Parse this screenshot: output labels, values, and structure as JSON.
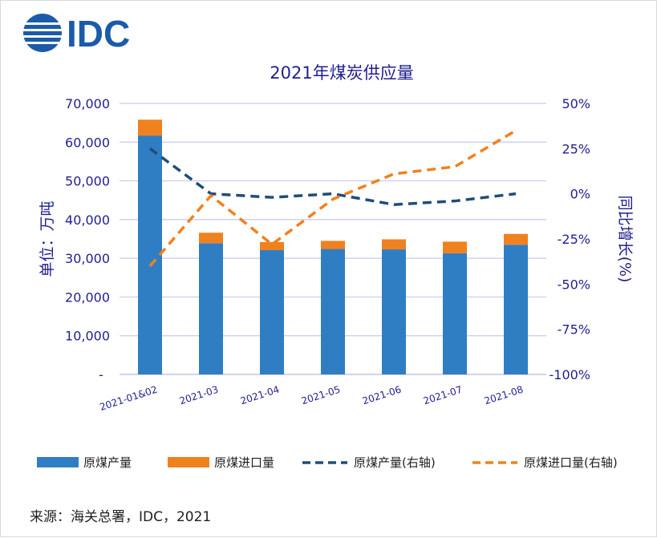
{
  "logo": {
    "text": "IDC"
  },
  "chart_data": {
    "type": "bar",
    "title": "2021年煤炭供应量",
    "categories": [
      "2021-01&02",
      "2021-03",
      "2021-04",
      "2021-05",
      "2021-06",
      "2021-07",
      "2021-08"
    ],
    "series": [
      {
        "name": "原煤产量",
        "kind": "bar",
        "axis": "left",
        "stack": "s1",
        "color": "#2f7ec4",
        "values": [
          61700,
          33900,
          32100,
          32400,
          32300,
          31300,
          33500
        ]
      },
      {
        "name": "原煤进口量",
        "kind": "bar",
        "axis": "left",
        "stack": "s1",
        "color": "#f0811f",
        "values": [
          4100,
          2700,
          2100,
          2100,
          2600,
          3000,
          2800
        ]
      },
      {
        "name": "原煤产量(右轴)",
        "kind": "line",
        "style": "dashed",
        "axis": "right",
        "color": "#1e4d7a",
        "values": [
          25,
          0,
          -2,
          0,
          -6,
          -4,
          0
        ]
      },
      {
        "name": "原煤进口量(右轴)",
        "kind": "line",
        "style": "dashed",
        "axis": "right",
        "color": "#f0811f",
        "values": [
          -40,
          -1,
          -28,
          -3,
          11,
          15,
          35
        ]
      }
    ],
    "ylabel": "单位：万吨",
    "y2label": "同比增长(%)",
    "ylim": [
      0,
      70000
    ],
    "y2lim": [
      -100,
      50
    ],
    "yticks": [
      "-",
      "10,000",
      "20,000",
      "30,000",
      "40,000",
      "50,000",
      "60,000",
      "70,000"
    ],
    "y2ticks": [
      "-100%",
      "-75%",
      "-50%",
      "-25%",
      "0%",
      "25%",
      "50%"
    ],
    "grid": true,
    "legend_position": "bottom"
  },
  "source": "来源：海关总署，IDC，2021"
}
